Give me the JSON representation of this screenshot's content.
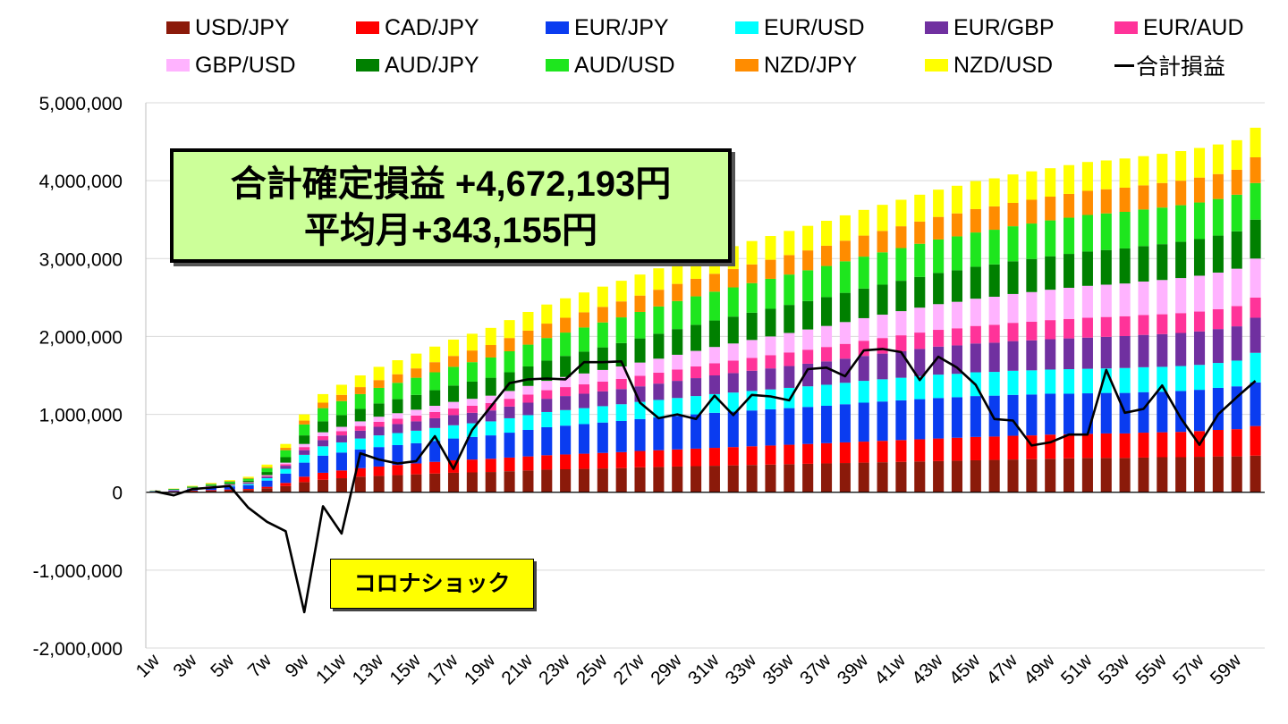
{
  "chart_data": {
    "type": "bar",
    "stacked": true,
    "categories": [
      "1w",
      "2w",
      "3w",
      "4w",
      "5w",
      "6w",
      "7w",
      "8w",
      "9w",
      "10w",
      "11w",
      "12w",
      "13w",
      "14w",
      "15w",
      "16w",
      "17w",
      "18w",
      "19w",
      "20w",
      "21w",
      "22w",
      "23w",
      "24w",
      "25w",
      "26w",
      "27w",
      "28w",
      "29w",
      "30w",
      "31w",
      "32w",
      "33w",
      "34w",
      "35w",
      "36w",
      "37w",
      "38w",
      "39w",
      "40w",
      "41w",
      "42w",
      "43w",
      "44w",
      "45w",
      "46w",
      "47w",
      "48w",
      "49w",
      "50w",
      "51w",
      "52w",
      "53w",
      "54w",
      "55w",
      "56w",
      "57w",
      "58w",
      "59w",
      "60w"
    ],
    "x_tick_labels": [
      "1w",
      "3w",
      "5w",
      "7w",
      "9w",
      "11w",
      "13w",
      "15w",
      "17w",
      "19w",
      "21w",
      "23w",
      "25w",
      "27w",
      "29w",
      "31w",
      "33w",
      "35w",
      "37w",
      "39w",
      "41w",
      "43w",
      "45w",
      "47w",
      "49w",
      "51w",
      "53w",
      "55w",
      "57w",
      "59w"
    ],
    "ylim": [
      -2000000,
      5000000
    ],
    "yticks": [
      -2000000,
      -1000000,
      0,
      1000000,
      2000000,
      3000000,
      4000000,
      5000000
    ],
    "ytick_labels": [
      "-2,000,000",
      "-1,000,000",
      "0",
      "1,000,000",
      "2,000,000",
      "3,000,000",
      "4,000,000",
      "5,000,000"
    ],
    "grid": true,
    "legend_position": "top",
    "series": [
      {
        "name": "USD/JPY",
        "color": "#8b1a0a",
        "values": [
          5000,
          10000,
          15000,
          20000,
          25000,
          30000,
          50000,
          80000,
          130000,
          160000,
          180000,
          200000,
          210000,
          220000,
          230000,
          240000,
          250000,
          255000,
          260000,
          270000,
          280000,
          290000,
          295000,
          300000,
          305000,
          310000,
          320000,
          325000,
          330000,
          335000,
          340000,
          345000,
          350000,
          355000,
          360000,
          365000,
          370000,
          375000,
          380000,
          385000,
          390000,
          395000,
          400000,
          405000,
          410000,
          415000,
          420000,
          425000,
          430000,
          435000,
          440000,
          440000,
          440000,
          445000,
          450000,
          450000,
          455000,
          460000,
          460000,
          470000
        ]
      },
      {
        "name": "CAD/JPY",
        "color": "#ff0000",
        "values": [
          2000,
          4000,
          6000,
          8000,
          10000,
          12000,
          20000,
          40000,
          70000,
          90000,
          100000,
          110000,
          120000,
          130000,
          140000,
          150000,
          160000,
          165000,
          170000,
          175000,
          180000,
          185000,
          190000,
          195000,
          200000,
          205000,
          210000,
          215000,
          220000,
          225000,
          230000,
          235000,
          240000,
          245000,
          250000,
          255000,
          260000,
          265000,
          270000,
          275000,
          280000,
          285000,
          290000,
          295000,
          300000,
          300000,
          305000,
          305000,
          310000,
          310000,
          310000,
          315000,
          315000,
          320000,
          320000,
          325000,
          330000,
          340000,
          350000,
          380000
        ]
      },
      {
        "name": "EUR/JPY",
        "color": "#0a3cf0",
        "values": [
          5000,
          10000,
          20000,
          30000,
          40000,
          50000,
          80000,
          120000,
          180000,
          220000,
          230000,
          240000,
          250000,
          255000,
          260000,
          270000,
          280000,
          290000,
          300000,
          320000,
          340000,
          360000,
          370000,
          380000,
          390000,
          400000,
          410000,
          420000,
          430000,
          440000,
          450000,
          455000,
          460000,
          465000,
          470000,
          475000,
          480000,
          490000,
          500000,
          505000,
          510000,
          515000,
          520000,
          520000,
          525000,
          525000,
          525000,
          525000,
          525000,
          520000,
          520000,
          520000,
          520000,
          520000,
          520000,
          525000,
          530000,
          540000,
          550000,
          560000
        ]
      },
      {
        "name": "EUR/USD",
        "color": "#00ffff",
        "values": [
          1000,
          2000,
          5000,
          8000,
          10000,
          15000,
          30000,
          60000,
          100000,
          120000,
          130000,
          140000,
          150000,
          155000,
          160000,
          165000,
          170000,
          175000,
          180000,
          185000,
          190000,
          195000,
          200000,
          205000,
          210000,
          215000,
          220000,
          225000,
          230000,
          235000,
          240000,
          245000,
          250000,
          255000,
          260000,
          265000,
          270000,
          275000,
          280000,
          285000,
          290000,
          295000,
          300000,
          300000,
          305000,
          305000,
          310000,
          310000,
          310000,
          315000,
          315000,
          315000,
          320000,
          320000,
          320000,
          320000,
          320000,
          320000,
          330000,
          380000
        ]
      },
      {
        "name": "EUR/GBP",
        "color": "#7030a0",
        "values": [
          1000,
          2000,
          4000,
          6000,
          8000,
          10000,
          20000,
          40000,
          60000,
          80000,
          90000,
          100000,
          110000,
          115000,
          120000,
          125000,
          130000,
          135000,
          140000,
          150000,
          160000,
          170000,
          180000,
          185000,
          190000,
          195000,
          200000,
          210000,
          220000,
          230000,
          240000,
          250000,
          260000,
          270000,
          280000,
          290000,
          300000,
          310000,
          320000,
          330000,
          340000,
          350000,
          360000,
          365000,
          370000,
          375000,
          380000,
          385000,
          390000,
          395000,
          400000,
          405000,
          410000,
          415000,
          420000,
          425000,
          430000,
          435000,
          440000,
          450000
        ]
      },
      {
        "name": "EUR/AUD",
        "color": "#ff3399",
        "values": [
          1000,
          2000,
          3000,
          4000,
          5000,
          6000,
          10000,
          20000,
          40000,
          50000,
          55000,
          60000,
          65000,
          70000,
          75000,
          80000,
          85000,
          90000,
          95000,
          100000,
          105000,
          110000,
          115000,
          120000,
          125000,
          130000,
          135000,
          140000,
          145000,
          150000,
          155000,
          160000,
          165000,
          170000,
          175000,
          180000,
          185000,
          190000,
          195000,
          200000,
          205000,
          210000,
          215000,
          220000,
          225000,
          230000,
          235000,
          240000,
          245000,
          250000,
          255000,
          255000,
          255000,
          255000,
          255000,
          255000,
          255000,
          255000,
          260000,
          260000
        ]
      },
      {
        "name": "GBP/USD",
        "color": "#ffb3ff",
        "values": [
          1000,
          2000,
          3000,
          4000,
          5000,
          6000,
          10000,
          20000,
          40000,
          50000,
          55000,
          60000,
          65000,
          70000,
          75000,
          80000,
          85000,
          90000,
          95000,
          100000,
          110000,
          120000,
          130000,
          140000,
          150000,
          160000,
          170000,
          180000,
          190000,
          200000,
          210000,
          220000,
          230000,
          240000,
          250000,
          260000,
          270000,
          280000,
          290000,
          300000,
          310000,
          320000,
          330000,
          340000,
          350000,
          360000,
          370000,
          380000,
          390000,
          400000,
          410000,
          415000,
          420000,
          430000,
          440000,
          450000,
          460000,
          470000,
          480000,
          500000
        ]
      },
      {
        "name": "AUD/JPY",
        "color": "#008000",
        "values": [
          2000,
          5000,
          8000,
          10000,
          15000,
          20000,
          40000,
          70000,
          110000,
          140000,
          150000,
          160000,
          170000,
          180000,
          190000,
          200000,
          210000,
          220000,
          230000,
          240000,
          250000,
          260000,
          270000,
          280000,
          290000,
          300000,
          310000,
          320000,
          330000,
          335000,
          340000,
          345000,
          350000,
          355000,
          360000,
          365000,
          370000,
          375000,
          380000,
          385000,
          390000,
          395000,
          400000,
          405000,
          410000,
          415000,
          420000,
          425000,
          430000,
          435000,
          440000,
          445000,
          450000,
          455000,
          460000,
          465000,
          470000,
          475000,
          480000,
          500000
        ]
      },
      {
        "name": "AUD/USD",
        "color": "#1ee61e",
        "values": [
          3000,
          6000,
          10000,
          15000,
          20000,
          25000,
          50000,
          90000,
          140000,
          170000,
          180000,
          190000,
          200000,
          210000,
          220000,
          230000,
          240000,
          250000,
          260000,
          270000,
          280000,
          290000,
          300000,
          310000,
          320000,
          330000,
          340000,
          350000,
          360000,
          365000,
          370000,
          375000,
          380000,
          385000,
          390000,
          395000,
          400000,
          405000,
          410000,
          415000,
          420000,
          425000,
          430000,
          435000,
          440000,
          445000,
          450000,
          455000,
          460000,
          465000,
          470000,
          470000,
          470000,
          470000,
          470000,
          470000,
          470000,
          470000,
          470000,
          470000
        ]
      },
      {
        "name": "NZD/JPY",
        "color": "#ff8c00",
        "values": [
          1000,
          2000,
          4000,
          6000,
          8000,
          10000,
          15000,
          30000,
          50000,
          70000,
          80000,
          90000,
          100000,
          110000,
          120000,
          130000,
          140000,
          150000,
          160000,
          170000,
          180000,
          185000,
          190000,
          195000,
          200000,
          205000,
          210000,
          215000,
          220000,
          225000,
          230000,
          235000,
          240000,
          245000,
          250000,
          255000,
          260000,
          265000,
          270000,
          275000,
          280000,
          285000,
          290000,
          295000,
          300000,
          300000,
          300000,
          305000,
          305000,
          305000,
          310000,
          310000,
          310000,
          310000,
          315000,
          315000,
          320000,
          320000,
          320000,
          330000
        ]
      },
      {
        "name": "NZD/USD",
        "color": "#ffff00",
        "values": [
          1000,
          3000,
          5000,
          8000,
          10000,
          15000,
          30000,
          50000,
          80000,
          110000,
          130000,
          150000,
          170000,
          180000,
          190000,
          200000,
          210000,
          215000,
          220000,
          230000,
          240000,
          245000,
          250000,
          255000,
          260000,
          265000,
          270000,
          275000,
          280000,
          285000,
          290000,
          295000,
          300000,
          305000,
          310000,
          315000,
          320000,
          325000,
          330000,
          335000,
          340000,
          345000,
          350000,
          355000,
          360000,
          360000,
          365000,
          365000,
          365000,
          370000,
          370000,
          370000,
          375000,
          375000,
          375000,
          380000,
          380000,
          380000,
          380000,
          380000
        ]
      }
    ],
    "line": {
      "name": "合計損益",
      "color": "#000000",
      "values": [
        10000,
        -40000,
        40000,
        60000,
        80000,
        -200000,
        -380000,
        -500000,
        -1540000,
        -180000,
        -530000,
        500000,
        420000,
        370000,
        400000,
        720000,
        300000,
        800000,
        1100000,
        1400000,
        1450000,
        1460000,
        1450000,
        1670000,
        1670000,
        1680000,
        1150000,
        950000,
        1000000,
        940000,
        1240000,
        990000,
        1250000,
        1230000,
        1180000,
        1580000,
        1600000,
        1490000,
        1820000,
        1840000,
        1800000,
        1440000,
        1740000,
        1600000,
        1380000,
        940000,
        920000,
        600000,
        640000,
        740000,
        740000,
        1570000,
        1020000,
        1070000,
        1370000,
        950000,
        610000,
        1000000,
        1220000,
        1430000
      ]
    }
  },
  "annotations": {
    "total_line1": "合計確定損益 +4,672,193円",
    "total_line2": "平均月+343,155円",
    "corona_label": "コロナショック"
  }
}
